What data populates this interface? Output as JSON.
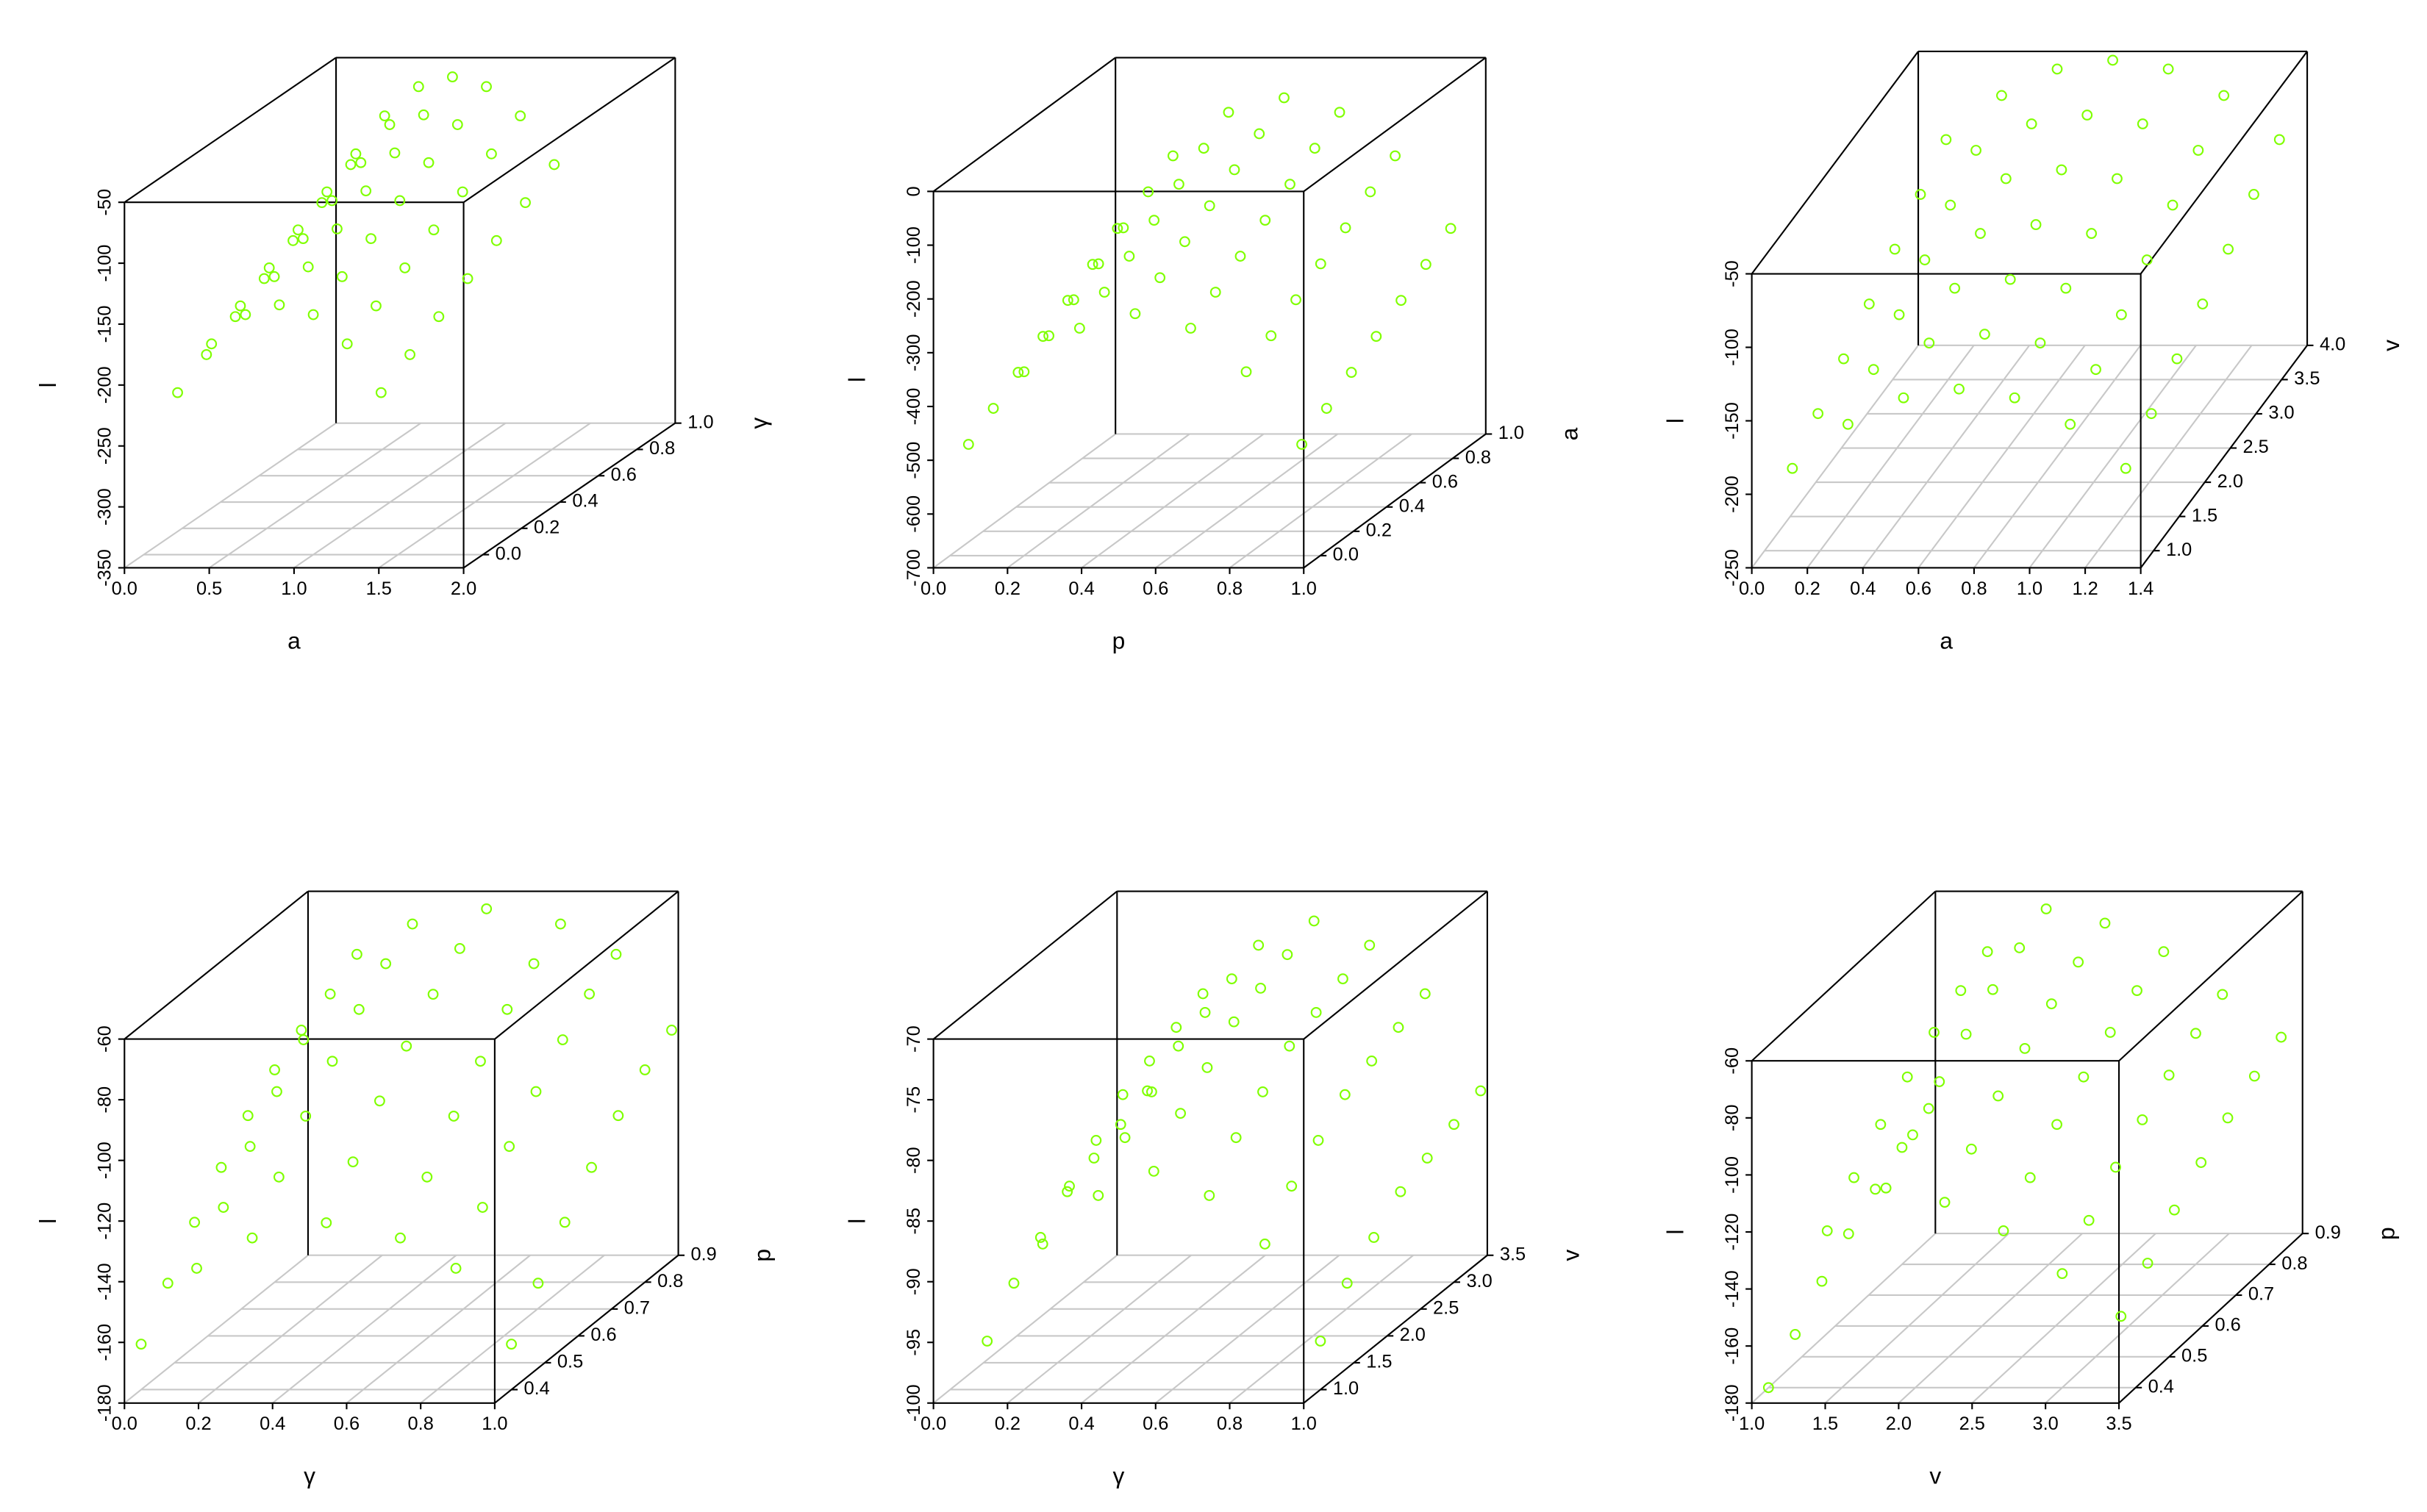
{
  "chart_data": [
    {
      "type": "scatter3d",
      "xlabel": "a",
      "ylabel": "γ",
      "zlabel": "l",
      "color": "#7fff00",
      "grid": true,
      "xlim": [
        0,
        2
      ],
      "ylim": [
        -0.1,
        1
      ],
      "zlim": [
        -350,
        -50
      ],
      "xticks": [
        {
          "value": 0,
          "label": "0.0"
        },
        0.5,
        {
          "value": 1,
          "label": "1.0"
        },
        1.5,
        {
          "value": 2,
          "label": "2.0"
        }
      ],
      "yticks": [
        {
          "value": 0,
          "label": "0.0"
        },
        0.2,
        0.4,
        0.6,
        0.8,
        {
          "value": 1,
          "label": "1.0"
        }
      ],
      "zticks": [
        -350,
        -300,
        -250,
        -200,
        -150,
        -100,
        -50
      ],
      "x": [
        0.2,
        0.4,
        0.6,
        0.8,
        1.0,
        1.2,
        1.4
      ],
      "y": [
        0,
        0.15,
        0.3,
        0.45,
        0.6,
        0.75,
        0.9
      ],
      "z": [
        [
          -217,
          -177,
          -153,
          -145,
          -153,
          -177,
          -217
        ],
        [
          -202,
          -162,
          -138,
          -130,
          -138,
          -162,
          -202
        ],
        [
          -187,
          -147,
          -123,
          -115,
          -123,
          -147,
          -187
        ],
        [
          -172,
          -132,
          -108,
          -100,
          -108,
          -132,
          -172
        ],
        [
          -157,
          -117,
          -93,
          -85,
          -93,
          -117,
          -157
        ],
        [
          -142,
          -102,
          -78,
          -70,
          -78,
          -102,
          -142
        ],
        [
          -127,
          -87,
          -63,
          -55,
          -63,
          -87,
          -127
        ]
      ]
    },
    {
      "type": "scatter3d",
      "xlabel": "p",
      "ylabel": "a",
      "zlabel": "l",
      "color": "#7fff00",
      "grid": true,
      "xlim": [
        0,
        1
      ],
      "ylim": [
        -0.1,
        1
      ],
      "zlim": [
        -700,
        0
      ],
      "xticks": [
        {
          "value": 0,
          "label": "0.0"
        },
        0.2,
        0.4,
        0.6,
        0.8,
        {
          "value": 1,
          "label": "1.0"
        }
      ],
      "yticks": [
        {
          "value": 0,
          "label": "0.0"
        },
        0.2,
        0.4,
        0.6,
        0.8,
        {
          "value": 1,
          "label": "1.0"
        }
      ],
      "zticks": [
        -700,
        -600,
        -500,
        -400,
        -300,
        -200,
        -100,
        0
      ],
      "x": [
        0.05,
        0.2,
        0.35,
        0.5,
        0.65,
        0.8,
        0.95
      ],
      "y": [
        0,
        0.15,
        0.3,
        0.45,
        0.6,
        0.75,
        0.9
      ],
      "z": [
        [
          -493,
          -358,
          -277,
          -250,
          -277,
          -358,
          -493
        ],
        [
          -460,
          -325,
          -244,
          -217,
          -244,
          -325,
          -460
        ],
        [
          -427,
          -292,
          -211,
          -184,
          -211,
          -292,
          -427
        ],
        [
          -394,
          -259,
          -178,
          -151,
          -178,
          -259,
          -394
        ],
        [
          -361,
          -226,
          -145,
          -118,
          -145,
          -226,
          -361
        ],
        [
          -328,
          -193,
          -112,
          -85,
          -112,
          -193,
          -328
        ],
        [
          -295,
          -160,
          -79,
          -52,
          -79,
          -160,
          -295
        ]
      ]
    },
    {
      "type": "scatter3d",
      "xlabel": "a",
      "ylabel": "v",
      "zlabel": "l",
      "color": "#7fff00",
      "grid": true,
      "xlim": [
        0,
        1.4
      ],
      "ylim": [
        0.75,
        4
      ],
      "zlim": [
        -250,
        -50
      ],
      "xticks": [
        {
          "value": 0,
          "label": "0.0"
        },
        0.2,
        0.4,
        0.6,
        0.8,
        {
          "value": 1,
          "label": "1.0"
        },
        1.2,
        1.4
      ],
      "yticks": [
        {
          "value": 1,
          "label": "1.0"
        },
        1.5,
        {
          "value": 2,
          "label": "2.0"
        },
        2.5,
        {
          "value": 3,
          "label": "3.0"
        },
        3.5,
        {
          "value": 4,
          "label": "4.0"
        }
      ],
      "zticks": [
        -250,
        -200,
        -150,
        -100,
        -50
      ],
      "x": [
        0.1,
        0.3,
        0.5,
        0.7,
        0.9,
        1.1,
        1.3
      ],
      "y": [
        1,
        1.5,
        2,
        2.5,
        3,
        3.5,
        4
      ],
      "z": [
        [
          -194,
          -164,
          -146,
          -140,
          -146,
          -164,
          -194
        ],
        [
          -180,
          -150,
          -132,
          -126,
          -132,
          -150,
          -180
        ],
        [
          -166,
          -136,
          -118,
          -112,
          -118,
          -136,
          -166
        ],
        [
          -152,
          -122,
          -104,
          -98,
          -104,
          -122,
          -152
        ],
        [
          -138,
          -108,
          -90,
          -84,
          -90,
          -108,
          -138
        ],
        [
          -124,
          -94,
          -76,
          -70,
          -76,
          -94,
          -124
        ],
        [
          -110,
          -80,
          -62,
          -56,
          -62,
          -80,
          -110
        ]
      ]
    },
    {
      "type": "scatter3d",
      "xlabel": "γ",
      "ylabel": "p",
      "zlabel": "l",
      "color": "#7fff00",
      "grid": true,
      "xlim": [
        0,
        1
      ],
      "ylim": [
        0.35,
        0.9
      ],
      "zlim": [
        -180,
        -60
      ],
      "xticks": [
        {
          "value": 0,
          "label": "0.0"
        },
        0.2,
        0.4,
        0.6,
        0.8,
        {
          "value": 1,
          "label": "1.0"
        }
      ],
      "yticks": [
        0.4,
        0.5,
        0.6,
        0.7,
        0.8,
        0.9
      ],
      "zticks": [
        -180,
        -160,
        -140,
        -120,
        -100,
        -80,
        -60
      ],
      "x": [
        0,
        0.15,
        0.3,
        0.5,
        0.7,
        0.85,
        1
      ],
      "y": [
        0.4,
        0.48,
        0.56,
        0.64,
        0.72,
        0.8,
        0.88
      ],
      "z": [
        [
          -165,
          -140,
          -130,
          -125,
          -130,
          -140,
          -165
        ],
        [
          -152,
          -127,
          -117,
          -112,
          -117,
          -127,
          -152
        ],
        [
          -139,
          -114,
          -104,
          -99,
          -104,
          -114,
          -139
        ],
        [
          -128,
          -103,
          -93,
          -88,
          -93,
          -103,
          -128
        ],
        [
          -118,
          -93,
          -83,
          -78,
          -83,
          -93,
          -118
        ],
        [
          -110,
          -85,
          -75,
          -70,
          -75,
          -85,
          -110
        ],
        [
          -104,
          -79,
          -69,
          -64,
          -69,
          -79,
          -104
        ]
      ]
    },
    {
      "type": "scatter3d",
      "xlabel": "γ",
      "ylabel": "v",
      "zlabel": "l",
      "color": "#7fff00",
      "grid": true,
      "xlim": [
        0,
        1
      ],
      "ylim": [
        0.75,
        3.5
      ],
      "zlim": [
        -100,
        -70
      ],
      "xticks": [
        {
          "value": 0,
          "label": "0.0"
        },
        0.2,
        0.4,
        0.6,
        0.8,
        {
          "value": 1,
          "label": "1.0"
        }
      ],
      "yticks": [
        {
          "value": 1,
          "label": "1.0"
        },
        1.5,
        {
          "value": 2,
          "label": "2.0"
        },
        2.5,
        {
          "value": 3,
          "label": "3.0"
        },
        3.5
      ],
      "zticks": [
        -100,
        -95,
        -90,
        -85,
        -80,
        -75,
        -70
      ],
      "x": [
        0.1,
        0.25,
        0.4,
        0.55,
        0.7,
        0.85,
        1
      ],
      "y": [
        1,
        1.4,
        1.8,
        2.2,
        2.6,
        3,
        3.4
      ],
      "z": [
        [
          -96,
          -88,
          -84,
          -82,
          -84,
          -88,
          -96
        ],
        [
          -93,
          -85,
          -81,
          -79,
          -81,
          -85,
          -93
        ],
        [
          -91,
          -83,
          -79,
          -77,
          -79,
          -83,
          -91
        ],
        [
          -89,
          -81,
          -77,
          -75,
          -77,
          -81,
          -89
        ],
        [
          -88,
          -80,
          -76,
          -74,
          -76,
          -80,
          -88
        ],
        [
          -87,
          -79,
          -75,
          -73,
          -75,
          -79,
          -87
        ],
        [
          -86,
          -78,
          -74,
          -72,
          -74,
          -78,
          -86
        ]
      ]
    },
    {
      "type": "scatter3d",
      "xlabel": "v",
      "ylabel": "p",
      "zlabel": "l",
      "color": "#7fff00",
      "grid": true,
      "xlim": [
        1,
        3.5
      ],
      "ylim": [
        0.35,
        0.9
      ],
      "zlim": [
        -180,
        -60
      ],
      "xticks": [
        {
          "value": 1,
          "label": "1.0"
        },
        1.5,
        {
          "value": 2,
          "label": "2.0"
        },
        2.5,
        {
          "value": 3,
          "label": "3.0"
        },
        3.5
      ],
      "yticks": [
        0.4,
        0.5,
        0.6,
        0.7,
        0.8,
        0.9
      ],
      "zticks": [
        -180,
        -160,
        -140,
        -120,
        -100,
        -80,
        -60
      ],
      "x": [
        1,
        1.4,
        1.8,
        2.2,
        2.6,
        3,
        3.4
      ],
      "y": [
        0.4,
        0.48,
        0.56,
        0.64,
        0.72,
        0.8,
        0.88
      ],
      "z": [
        [
          -180,
          -125,
          -110,
          -115,
          -125,
          -140,
          -155
        ],
        [
          -170,
          -115,
          -100,
          -105,
          -115,
          -130,
          -145
        ],
        [
          -160,
          -105,
          -90,
          -95,
          -105,
          -120,
          -135
        ],
        [
          -152,
          -97,
          -82,
          -87,
          -97,
          -112,
          -127
        ],
        [
          -145,
          -90,
          -75,
          -80,
          -90,
          -105,
          -120
        ],
        [
          -139,
          -84,
          -69,
          -74,
          -84,
          -99,
          -114
        ],
        [
          -134,
          -79,
          -64,
          -69,
          -79,
          -94,
          -109
        ]
      ]
    }
  ]
}
